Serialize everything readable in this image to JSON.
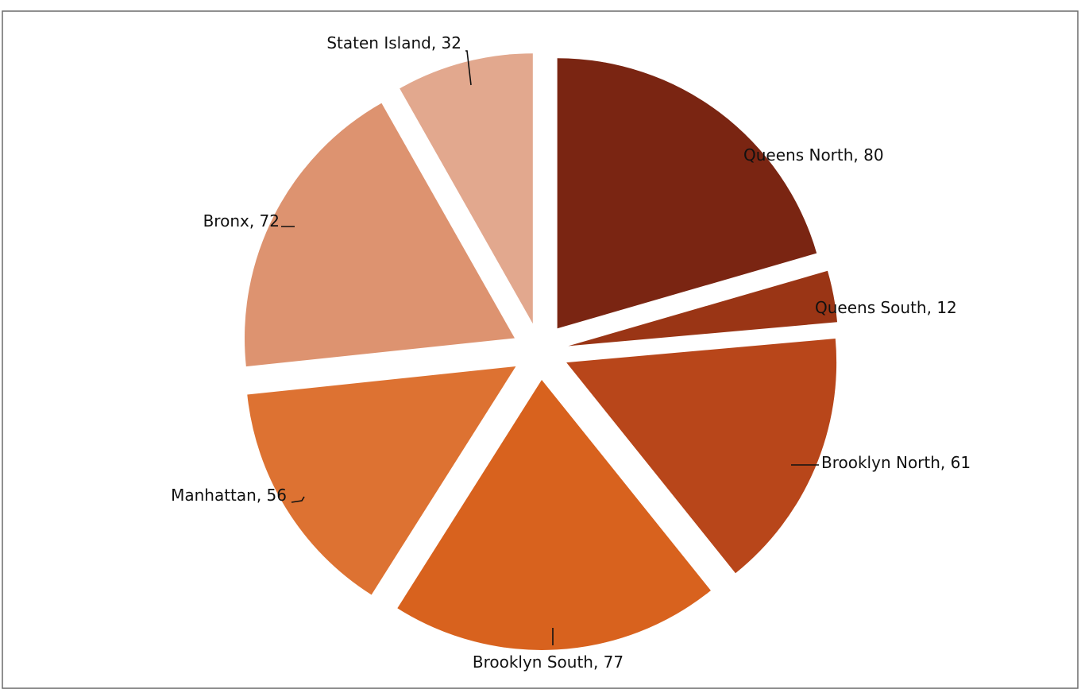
{
  "chart_data": {
    "type": "pie",
    "exploded": true,
    "title": "",
    "label_format": "category, value",
    "slices": [
      {
        "label": "Queens North",
        "value": 80,
        "color": "#7a2512"
      },
      {
        "label": "Queens South",
        "value": 12,
        "color": "#9a3515"
      },
      {
        "label": "Brooklyn North",
        "value": 61,
        "color": "#b8461a"
      },
      {
        "label": "Brooklyn South",
        "value": 77,
        "color": "#d8621e"
      },
      {
        "label": "Manhattan",
        "value": 56,
        "color": "#dd7232"
      },
      {
        "label": "Bronx",
        "value": 72,
        "color": "#dd9370"
      },
      {
        "label": "Staten Island",
        "value": 32,
        "color": "#e2a88e"
      }
    ]
  }
}
